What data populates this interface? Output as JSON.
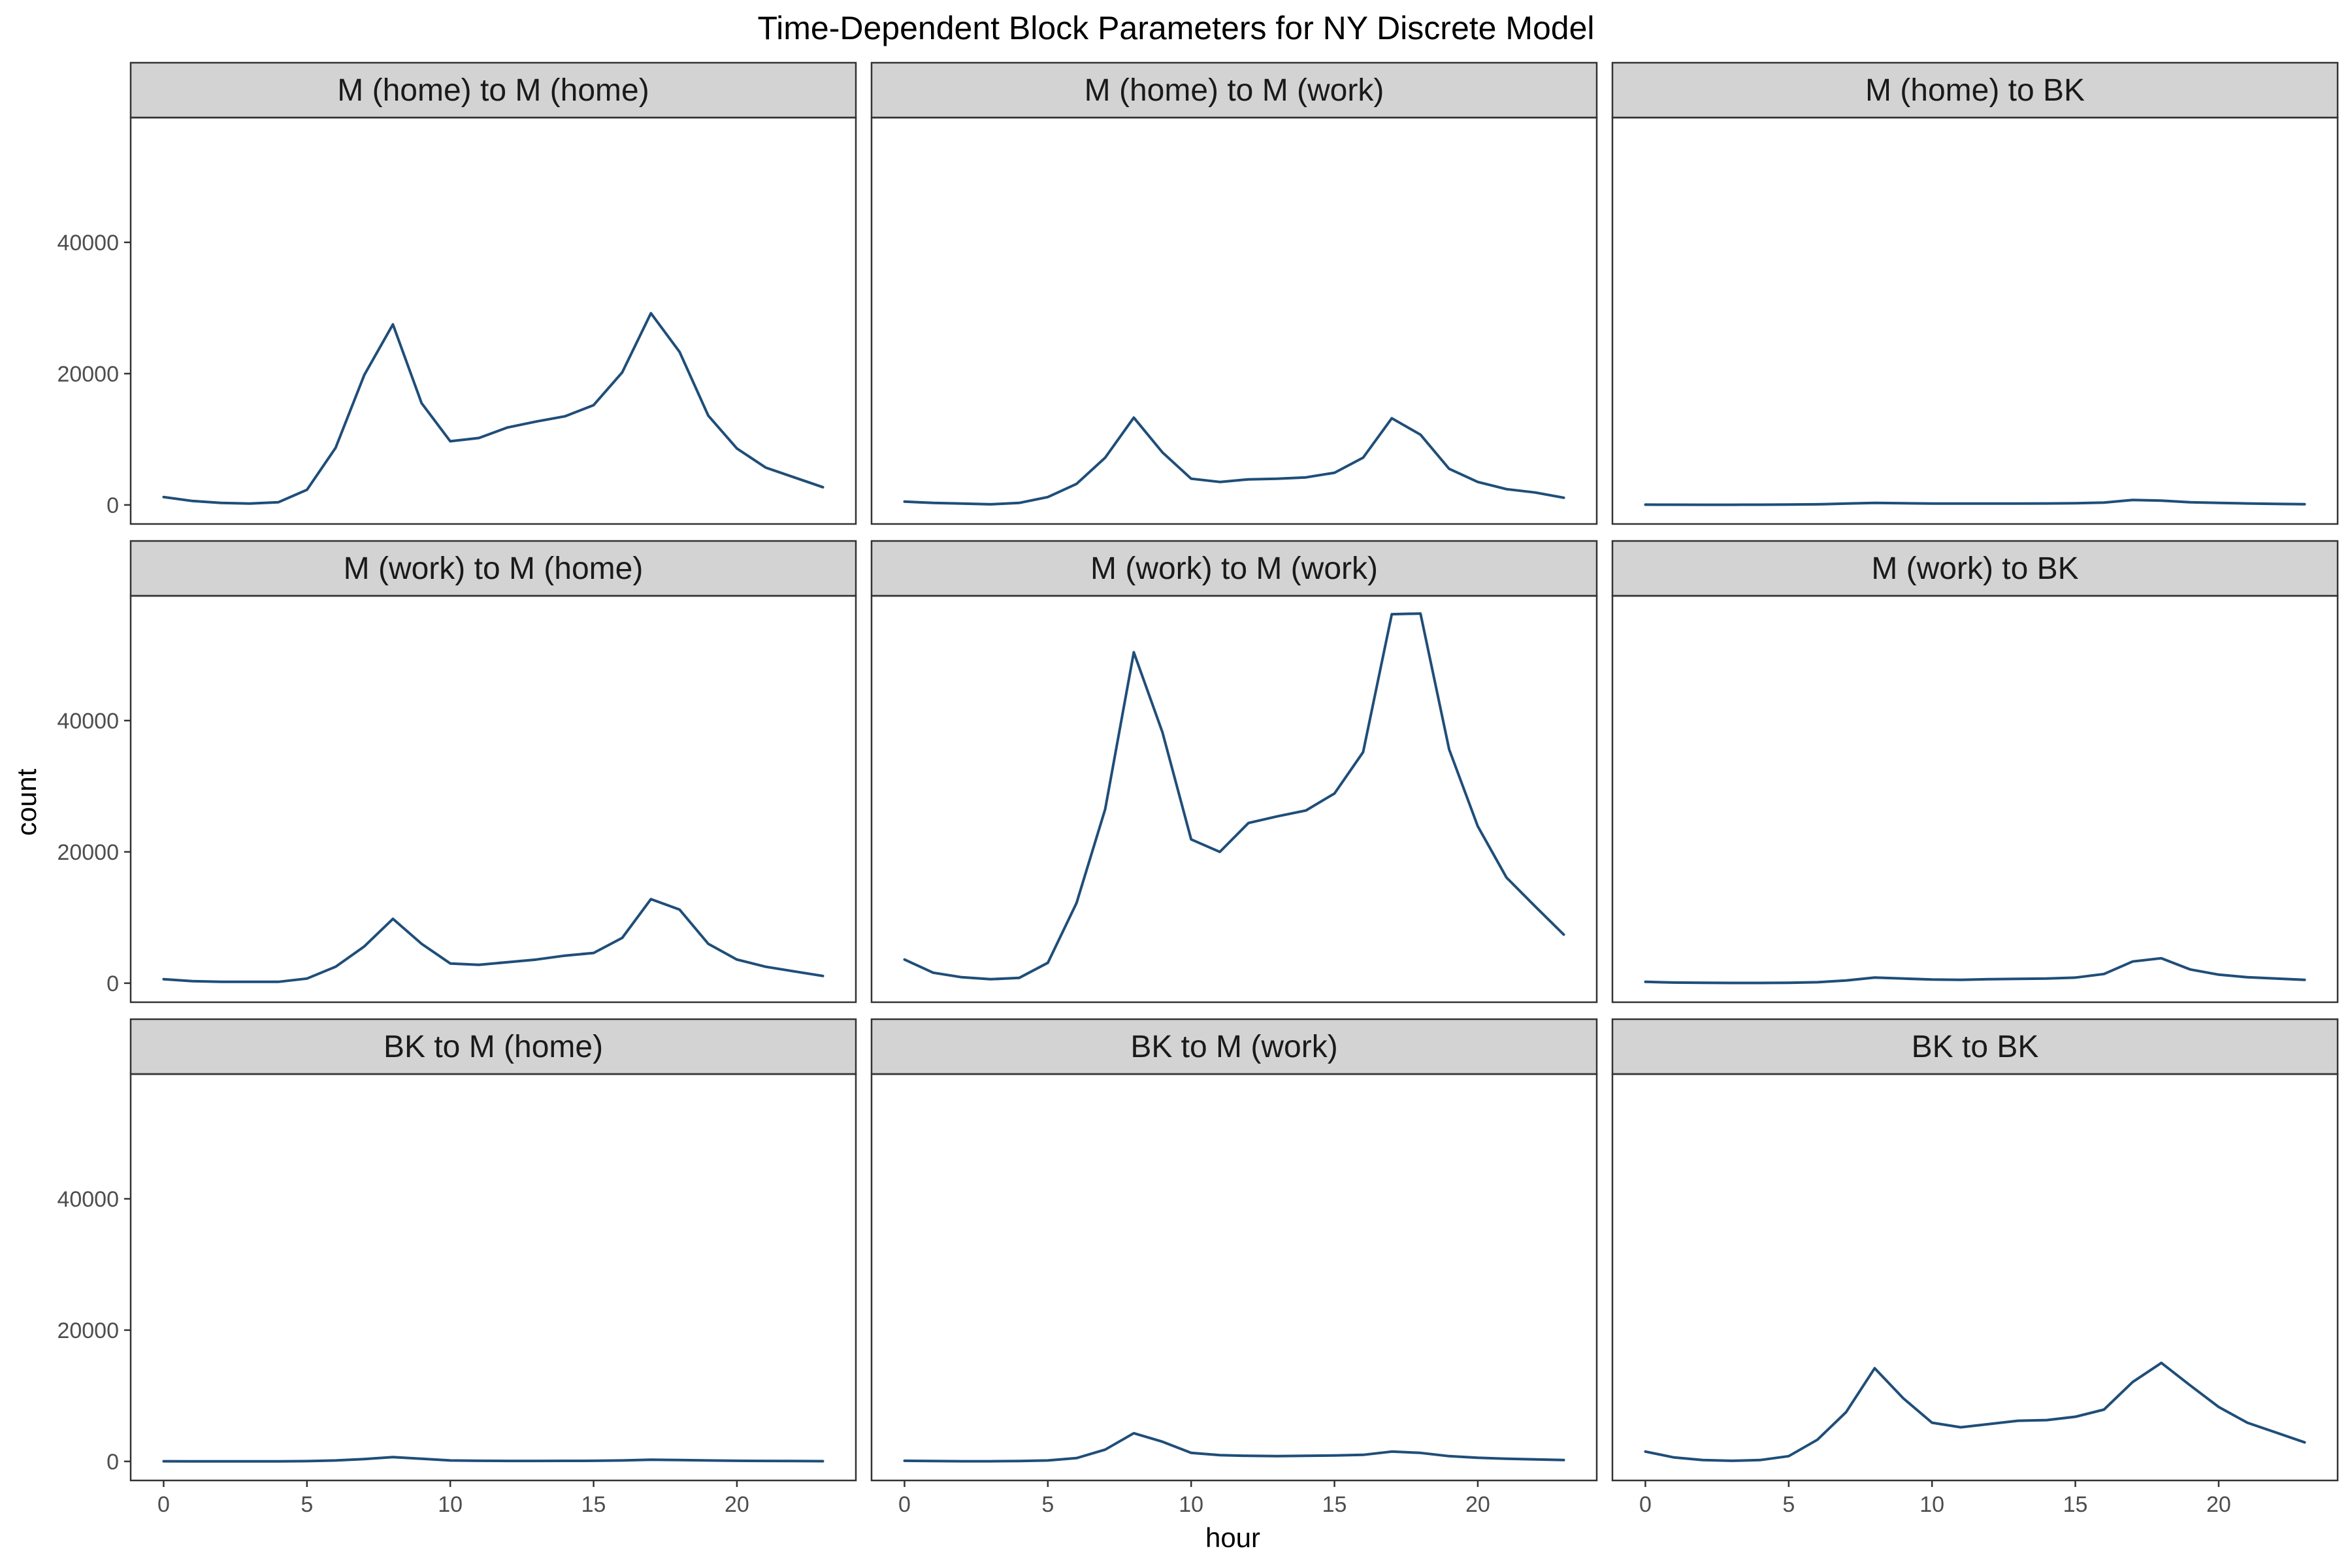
{
  "chart_data": {
    "type": "line",
    "title": "Time-Dependent Block Parameters for NY Discrete Model",
    "xlabel": "hour",
    "ylabel": "count",
    "xlim": [
      -1.15,
      24.15
    ],
    "ylim": [
      -2900,
      59000
    ],
    "xticks": [
      0,
      5,
      10,
      15,
      20
    ],
    "yticks": [
      0,
      20000,
      40000
    ],
    "grid": false,
    "line_color": "#1f4e79",
    "x": [
      0,
      1,
      2,
      3,
      4,
      5,
      6,
      7,
      8,
      9,
      10,
      11,
      12,
      13,
      14,
      15,
      16,
      17,
      18,
      19,
      20,
      21,
      22,
      23
    ],
    "facets": [
      {
        "name": "M (home) to M (home)",
        "values": [
          1200,
          600,
          300,
          200,
          400,
          2300,
          8700,
          19800,
          27500,
          15500,
          9700,
          10200,
          11800,
          12700,
          13500,
          15200,
          20200,
          29200,
          23300,
          13600,
          8600,
          5700,
          4200,
          2700
        ]
      },
      {
        "name": "M (home) to M (work)",
        "values": [
          500,
          300,
          200,
          100,
          300,
          1200,
          3200,
          7200,
          13300,
          8000,
          4000,
          3500,
          3900,
          4000,
          4200,
          4900,
          7200,
          13200,
          10700,
          5500,
          3500,
          2400,
          1900,
          1100
        ]
      },
      {
        "name": "M (home) to BK",
        "values": [
          50,
          40,
          30,
          30,
          40,
          60,
          100,
          200,
          300,
          250,
          200,
          200,
          200,
          200,
          220,
          250,
          350,
          750,
          650,
          400,
          300,
          220,
          170,
          120
        ]
      },
      {
        "name": "M (work) to M (home)",
        "values": [
          600,
          300,
          200,
          200,
          200,
          700,
          2500,
          5600,
          9800,
          6000,
          3000,
          2800,
          3200,
          3600,
          4200,
          4600,
          6900,
          12800,
          11200,
          6000,
          3600,
          2500,
          1800,
          1100
        ]
      },
      {
        "name": "M (work) to M (work)",
        "values": [
          3600,
          1600,
          900,
          600,
          800,
          3100,
          12200,
          26500,
          50400,
          38200,
          21900,
          20000,
          24400,
          25400,
          26300,
          28900,
          35200,
          56200,
          56300,
          35600,
          23900,
          16100,
          11700,
          7400
        ]
      },
      {
        "name": "M (work) to BK",
        "values": [
          200,
          100,
          60,
          40,
          40,
          60,
          150,
          400,
          850,
          700,
          550,
          500,
          600,
          650,
          700,
          850,
          1400,
          3300,
          3800,
          2100,
          1300,
          900,
          700,
          500
        ]
      },
      {
        "name": "BK to M (home)",
        "values": [
          30,
          20,
          20,
          20,
          20,
          50,
          150,
          350,
          650,
          400,
          150,
          100,
          80,
          80,
          90,
          100,
          150,
          250,
          200,
          150,
          100,
          80,
          60,
          40
        ]
      },
      {
        "name": "BK to M (work)",
        "values": [
          100,
          70,
          30,
          30,
          60,
          150,
          500,
          1800,
          4300,
          3000,
          1300,
          950,
          850,
          800,
          850,
          900,
          1000,
          1500,
          1300,
          800,
          550,
          400,
          300,
          200
        ]
      },
      {
        "name": "BK to BK",
        "values": [
          1500,
          600,
          200,
          100,
          200,
          800,
          3300,
          7500,
          14200,
          9600,
          5900,
          5200,
          5700,
          6200,
          6300,
          6800,
          7900,
          12100,
          15000,
          11600,
          8300,
          5900,
          4400,
          2900
        ]
      }
    ]
  }
}
